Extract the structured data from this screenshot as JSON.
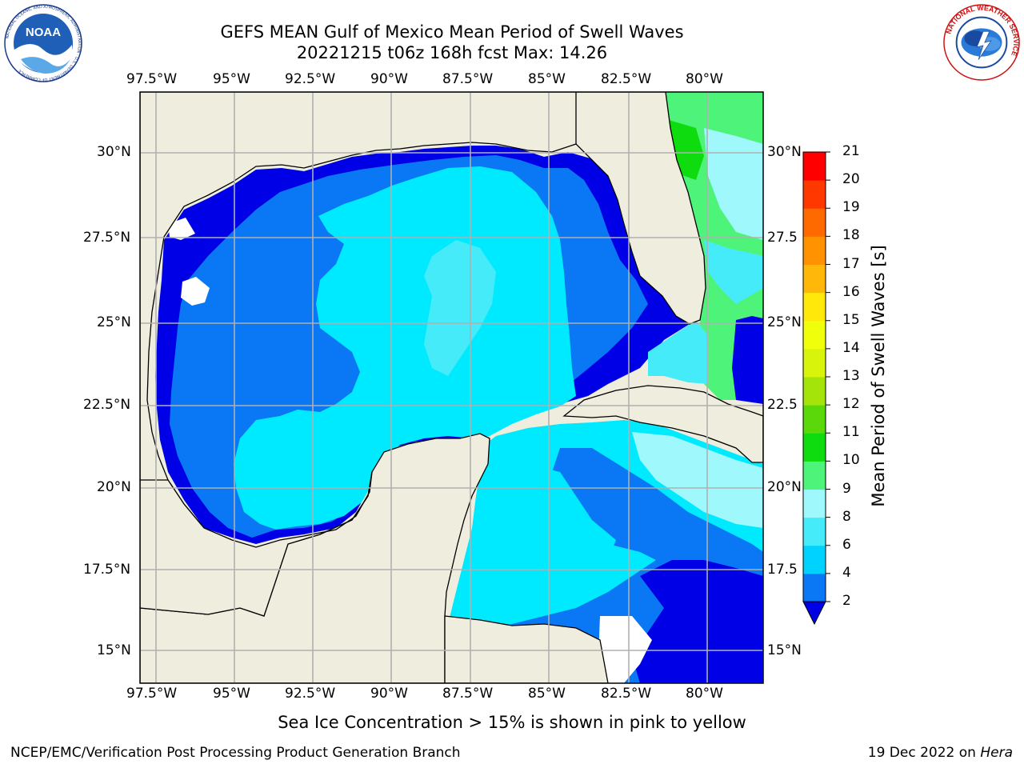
{
  "title_line1": "GEFS MEAN Gulf of Mexico Mean Period of Swell Waves",
  "title_line2": "20221215 t06z 168h fcst   Max: 14.26",
  "lon_ticks": [
    "97.5°W",
    "95°W",
    "92.5°W",
    "90°W",
    "87.5°W",
    "85°W",
    "82.5°W",
    "80°W"
  ],
  "lat_ticks": [
    "30°N",
    "27.5°N",
    "25°N",
    "22.5°N",
    "20°N",
    "17.5°N",
    "15°N"
  ],
  "lat_ticks_right": [
    "30°N",
    "27.5",
    "25°N",
    "22.5",
    "20°N",
    "17.5",
    "15°N"
  ],
  "colorbar": {
    "label": "Mean Period of Swell Waves [s]",
    "ticks": [
      "2",
      "4",
      "6",
      "8",
      "9",
      "10",
      "11",
      "12",
      "13",
      "14",
      "15",
      "16",
      "17",
      "18",
      "19",
      "20",
      "21"
    ],
    "colors": [
      "#0a78f5",
      "#00d2ff",
      "#46ebfa",
      "#9ef8fc",
      "#4ef47a",
      "#0fdc0f",
      "#5ad80a",
      "#a4e40a",
      "#d8f40a",
      "#f0ff0a",
      "#ffe80a",
      "#ffb80a",
      "#ff9200",
      "#ff6a00",
      "#ff3800",
      "#ff0000"
    ],
    "extend_color": "#0000e6"
  },
  "subtitle": "Sea Ice Concentration > 15% is shown in pink to yellow",
  "footer_left": "NCEP/EMC/Verification Post Processing Product Generation Branch",
  "footer_right_date": "19 Dec 2022 on ",
  "footer_right_host": "Hera",
  "logos": {
    "noaa": {
      "text": "NOAA",
      "ring": "NATIONAL OCEANIC AND ATMOSPHERIC ADMINISTRATION · U.S. DEPARTMENT OF COMMERCE"
    },
    "nws": {
      "ring": "NATIONAL WEATHER SERVICE"
    }
  }
}
